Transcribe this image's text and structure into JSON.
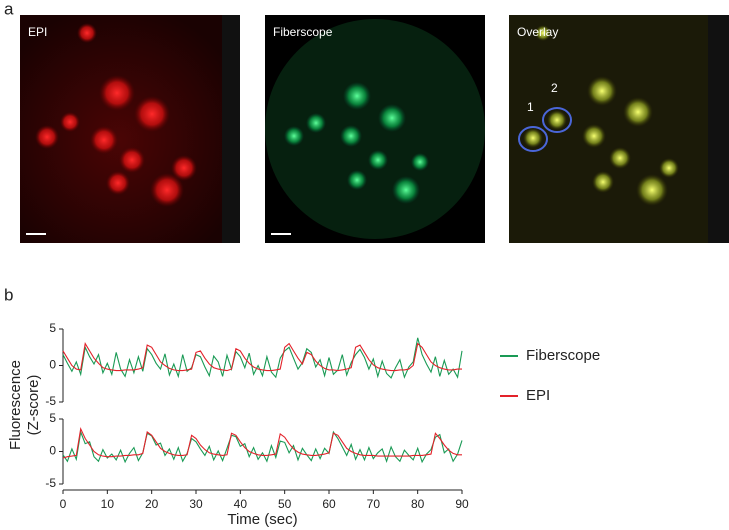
{
  "figure": {
    "panel_a": "a",
    "panel_b": "b",
    "images": [
      "EPI",
      "Fiberscope",
      "Overlay"
    ],
    "rois": [
      "1",
      "2"
    ],
    "ylabel": [
      "Fluorescence",
      "(Z-score)"
    ]
  },
  "chart_data": [
    {
      "type": "line",
      "xlim": [
        0,
        90
      ],
      "ylim": [
        -5,
        5
      ],
      "yticks": [
        -5,
        0,
        5
      ],
      "x": [
        0,
        1,
        2,
        3,
        4,
        5,
        6,
        7,
        8,
        9,
        10,
        11,
        12,
        13,
        14,
        15,
        16,
        17,
        18,
        19,
        20,
        21,
        22,
        23,
        24,
        25,
        26,
        27,
        28,
        29,
        30,
        31,
        32,
        33,
        34,
        35,
        36,
        37,
        38,
        39,
        40,
        41,
        42,
        43,
        44,
        45,
        46,
        47,
        48,
        49,
        50,
        51,
        52,
        53,
        54,
        55,
        56,
        57,
        58,
        59,
        60,
        61,
        62,
        63,
        64,
        65,
        66,
        67,
        68,
        69,
        70,
        71,
        72,
        73,
        74,
        75,
        76,
        77,
        78,
        79,
        80,
        81,
        82,
        83,
        84,
        85,
        86,
        87,
        88,
        89,
        90
      ],
      "series": [
        {
          "name": "Fiberscope",
          "color": "#1a9a55",
          "values": [
            1.5,
            0.3,
            -0.8,
            0.5,
            -1.2,
            2.5,
            1.2,
            0.2,
            1.5,
            -1,
            0.3,
            -1.2,
            1.8,
            -0.5,
            -1.5,
            0.8,
            -1,
            1.2,
            -0.8,
            2.3,
            1.5,
            0.3,
            -0.5,
            1.6,
            -1.3,
            0.2,
            -1.5,
            1.5,
            -0.8,
            -0.3,
            1.5,
            1.2,
            -0.2,
            -1.4,
            1.3,
            0.5,
            -1.5,
            1.4,
            -0.5,
            1.9,
            1.2,
            -0.3,
            1.7,
            -1.2,
            0,
            -1.4,
            1.2,
            -0.9,
            -1.6,
            1,
            2,
            2.5,
            1,
            -0.5,
            0.4,
            2.3,
            1.8,
            -0.2,
            0.8,
            -1.4,
            1.1,
            -1.2,
            -0.6,
            1.5,
            -1.3,
            0.4,
            1.5,
            2.2,
            1.1,
            -0.5,
            0.9,
            -1.5,
            0.6,
            -1.1,
            -1.7,
            -0.3,
            0.8,
            -1.6,
            -0.2,
            0.5,
            3.8,
            1.5,
            0.2,
            -0.9,
            1.2,
            -1.5,
            0.7,
            -1.2,
            -0.5,
            -1.6,
            2
          ]
        },
        {
          "name": "EPI",
          "color": "#e3222a",
          "values": [
            2,
            1,
            0,
            -0.5,
            -0.6,
            3,
            2,
            1,
            0.3,
            -0.3,
            -0.5,
            -0.6,
            -0.7,
            -0.7,
            -0.6,
            -0.6,
            -0.6,
            -0.5,
            -0.3,
            2.8,
            2.5,
            1.5,
            0.5,
            0,
            -0.4,
            -0.6,
            -0.7,
            -0.7,
            -0.6,
            -0.5,
            1.8,
            2,
            1,
            0.2,
            -0.3,
            -0.5,
            -0.6,
            -0.7,
            -0.5,
            2.3,
            2,
            1,
            0.3,
            -0.2,
            -0.5,
            -0.6,
            -0.7,
            -0.7,
            -0.6,
            -0.5,
            2.5,
            3,
            2,
            1,
            0.2,
            1.8,
            1.5,
            0.6,
            0,
            -0.4,
            -0.6,
            -0.6,
            -0.7,
            -0.6,
            -0.5,
            -0.3,
            2.5,
            2.8,
            1.8,
            0.8,
            0.1,
            -0.3,
            -0.5,
            -0.6,
            -0.7,
            -0.7,
            -0.6,
            -0.6,
            -0.5,
            0,
            3,
            2.5,
            1.5,
            0.5,
            0,
            -0.3,
            -0.5,
            -0.6,
            -0.6,
            -0.5,
            -0.5
          ]
        }
      ]
    },
    {
      "type": "line",
      "xlabel": "Time (sec)",
      "xlim": [
        0,
        90
      ],
      "xticks": [
        0,
        10,
        20,
        30,
        40,
        50,
        60,
        70,
        80,
        90
      ],
      "ylim": [
        -5,
        5
      ],
      "yticks": [
        -5,
        0,
        5
      ],
      "x": [
        0,
        1,
        2,
        3,
        4,
        5,
        6,
        7,
        8,
        9,
        10,
        11,
        12,
        13,
        14,
        15,
        16,
        17,
        18,
        19,
        20,
        21,
        22,
        23,
        24,
        25,
        26,
        27,
        28,
        29,
        30,
        31,
        32,
        33,
        34,
        35,
        36,
        37,
        38,
        39,
        40,
        41,
        42,
        43,
        44,
        45,
        46,
        47,
        48,
        49,
        50,
        51,
        52,
        53,
        54,
        55,
        56,
        57,
        58,
        59,
        60,
        61,
        62,
        63,
        64,
        65,
        66,
        67,
        68,
        69,
        70,
        71,
        72,
        73,
        74,
        75,
        76,
        77,
        78,
        79,
        80,
        81,
        82,
        83,
        84,
        85,
        86,
        87,
        88,
        89,
        90
      ],
      "series": [
        {
          "color": "#1a9a55",
          "values": [
            -0.5,
            -1.5,
            0.4,
            -1.2,
            3,
            1.2,
            1.5,
            -0.8,
            -1.5,
            0.3,
            -1,
            -0.4,
            -1.3,
            0.2,
            -1.6,
            -0.3,
            0.6,
            -1.4,
            -0.2,
            2.8,
            2.4,
            1,
            1.3,
            -0.6,
            0.4,
            -1.2,
            0.6,
            -1.5,
            -0.3,
            2,
            1.5,
            0.4,
            -0.6,
            0.8,
            -1.3,
            0.1,
            -1.4,
            0.5,
            2.5,
            2.3,
            0.8,
            1.2,
            -0.8,
            0.6,
            -1.2,
            -0.2,
            -1.5,
            0.9,
            -0.9,
            1.6,
            1.4,
            -0.2,
            0.9,
            -1.3,
            0.5,
            -0.5,
            -1.4,
            0.4,
            -1.1,
            0.5,
            -0.3,
            3,
            2,
            0.7,
            -0.6,
            1.1,
            -1.2,
            0.3,
            -1.3,
            0.6,
            -1.1,
            -0.2,
            0.4,
            -1.5,
            0.7,
            -0.8,
            -1.5,
            0.2,
            -0.6,
            -1.3,
            0.5,
            -1.6,
            -0.4,
            0.3,
            2.2,
            2.6,
            -0.2,
            0.4,
            -1.5,
            -0.4,
            1.7
          ]
        },
        {
          "color": "#e3222a",
          "values": [
            -1,
            -0.8,
            -0.7,
            -0.6,
            3.5,
            2,
            1,
            0,
            -0.5,
            -0.7,
            -0.8,
            -0.8,
            -0.7,
            -0.7,
            -0.6,
            -0.6,
            -0.5,
            -0.5,
            -0.3,
            3,
            2.5,
            1.5,
            0.5,
            0,
            -0.3,
            -0.5,
            -0.6,
            -0.6,
            -0.5,
            2.5,
            2,
            1,
            0.3,
            -0.2,
            -0.4,
            -0.5,
            -0.6,
            -0.5,
            2.8,
            2.5,
            1.5,
            0.6,
            0,
            -0.3,
            -0.5,
            -0.6,
            -0.6,
            -0.5,
            -0.4,
            2.7,
            2.2,
            1.2,
            0.4,
            -0.1,
            -0.4,
            -0.5,
            -0.6,
            -0.6,
            -0.5,
            -0.4,
            -0.2,
            2.8,
            2.5,
            1.5,
            0.5,
            0,
            -0.3,
            -0.5,
            -0.6,
            -0.6,
            -0.6,
            -0.7,
            -0.7,
            -0.7,
            -0.7,
            -0.7,
            -0.7,
            -0.7,
            -0.7,
            -0.6,
            -0.6,
            -0.6,
            -0.5,
            -0.4,
            2.8,
            2,
            1,
            0.2,
            -0.3,
            -0.5,
            -0.5
          ]
        }
      ]
    }
  ]
}
